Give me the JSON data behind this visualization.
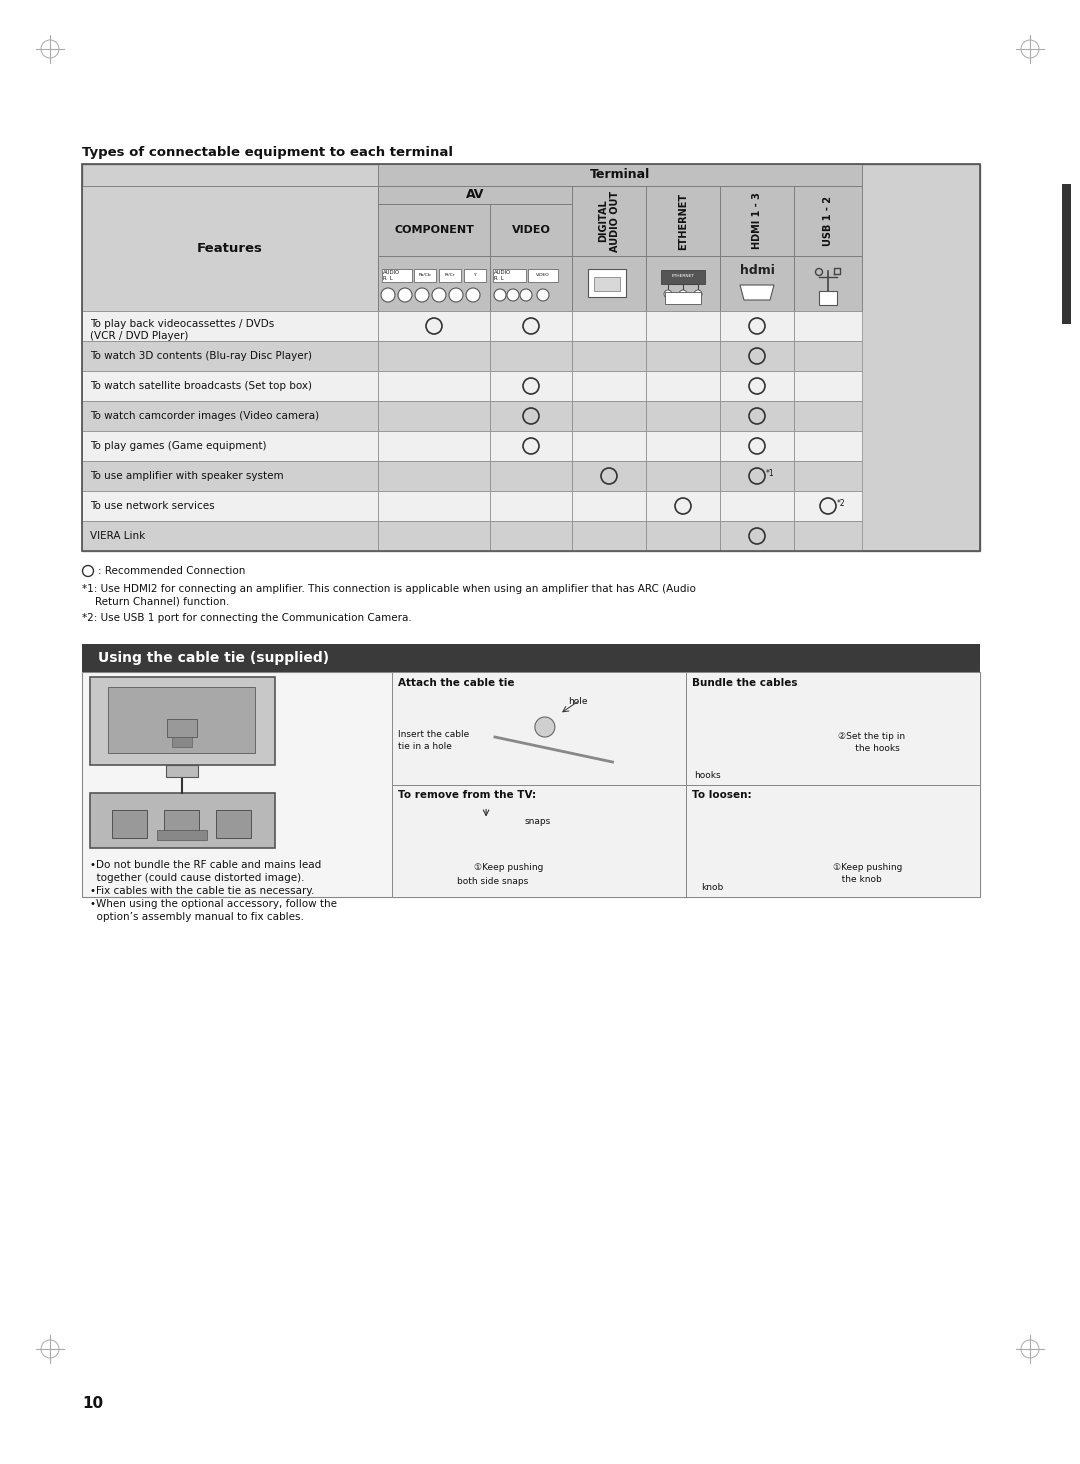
{
  "title": "Types of connectable equipment to each terminal",
  "bg": "#ffffff",
  "cell_light": "#d0d0d0",
  "cell_white": "#f0f0f0",
  "cell_header": "#c0c0c0",
  "row_labels": [
    "To play back videocassettes / DVDs\n(VCR / DVD Player)",
    "To watch 3D contents (Blu-ray Disc Player)",
    "To watch satellite broadcasts (Set top box)",
    "To watch camcorder images (Video camera)",
    "To play games (Game equipment)",
    "To use amplifier with speaker system",
    "To use network services",
    "VIERA Link"
  ],
  "circles": [
    [
      1,
      1,
      0,
      0,
      1,
      0
    ],
    [
      0,
      0,
      0,
      0,
      1,
      0
    ],
    [
      0,
      1,
      0,
      0,
      1,
      0
    ],
    [
      0,
      1,
      0,
      0,
      1,
      0
    ],
    [
      0,
      1,
      0,
      0,
      1,
      0
    ],
    [
      0,
      0,
      1,
      0,
      2,
      0
    ],
    [
      0,
      0,
      0,
      1,
      0,
      3
    ],
    [
      0,
      0,
      0,
      0,
      1,
      0
    ]
  ],
  "fn_circle": ": Recommended Connection",
  "fn1": "*1: Use HDMI2 for connecting an amplifier. This connection is applicable when using an amplifier that has ARC (Audio",
  "fn1b": "    Return Channel) function.",
  "fn2": "*2: Use USB 1 port for connecting the Communication Camera.",
  "sec_title": "Using the cable tie (supplied)",
  "sec_bg": "#3a3a3a",
  "sec_fg": "#ffffff",
  "bullets": [
    "•Do not bundle the RF cable and mains lead",
    "  together (could cause distorted image).",
    "•Fix cables with the cable tie as necessary.",
    "•When using the optional accessory, follow the",
    "  option’s assembly manual to fix cables."
  ],
  "attach_title": "Attach the cable tie",
  "attach_l1": "Insert the cable",
  "attach_l2": "tie in a hole",
  "hole_label": "hole",
  "bundle_title": "Bundle the cables",
  "bundle_l1": "②Set the tip in",
  "bundle_l2": "      the hooks",
  "hooks_label": "hooks",
  "remove_title": "To remove from the TV:",
  "remove_l1": "①Keep pushing",
  "remove_l2": "both side snaps",
  "snaps_label": "snaps",
  "loosen_title": "To loosen:",
  "loosen_l1": "①Keep pushing",
  "loosen_l2": "   the knob",
  "knob_label": "knob",
  "page_num": "10"
}
